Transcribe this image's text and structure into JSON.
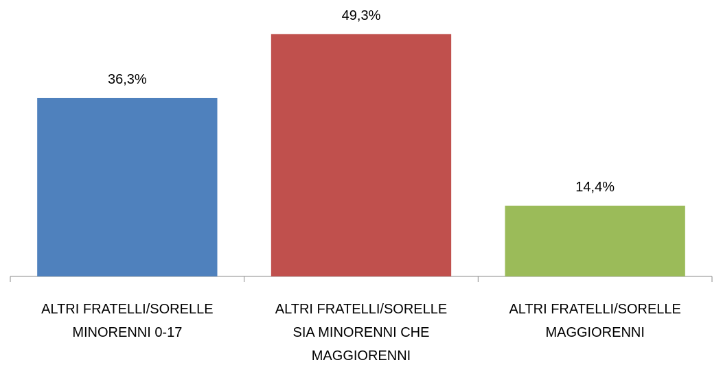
{
  "chart_data": {
    "type": "bar",
    "categories": [
      "ALTRI FRATELLI/SORELLE\nMINORENNI  0-17",
      "ALTRI FRATELLI/SORELLE\nSIA MINORENNI   CHE\nMAGGIORENNI",
      "ALTRI FRATELLI/SORELLE\nMAGGIORENNI"
    ],
    "values": [
      36.3,
      49.3,
      14.4
    ],
    "value_labels": [
      "36,3%",
      "49,3%",
      "14,4%"
    ],
    "colors": [
      "#4f81bd",
      "#c0504d",
      "#9bbb59"
    ],
    "ylim": [
      0,
      55
    ]
  }
}
